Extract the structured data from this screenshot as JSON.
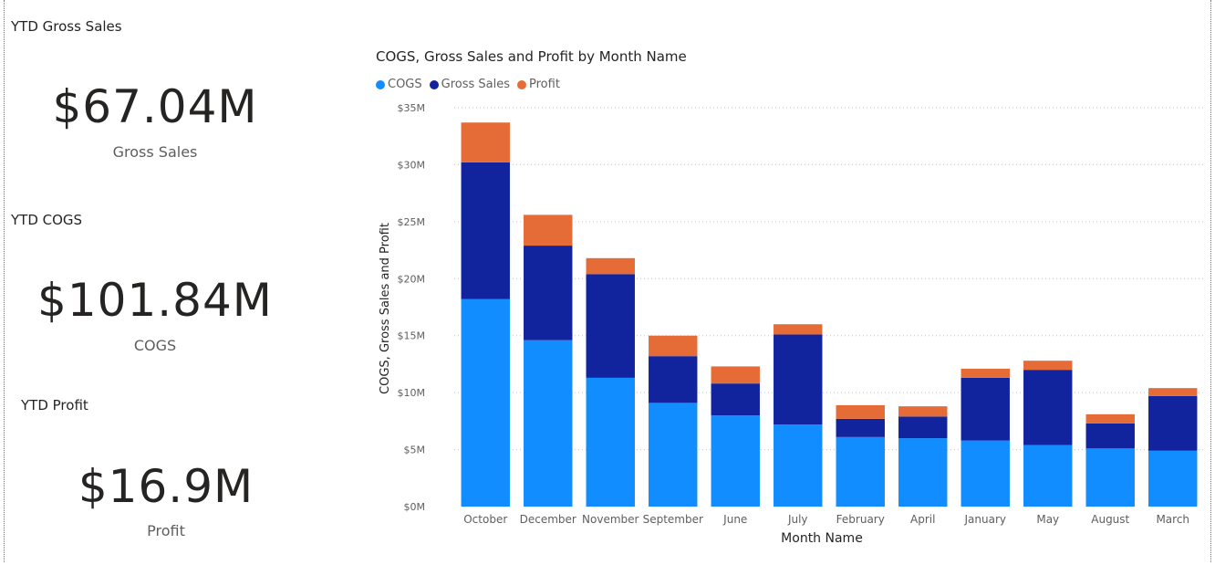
{
  "cards": [
    {
      "title": "YTD Gross Sales",
      "value": "$67.04M",
      "label": "Gross Sales"
    },
    {
      "title": "YTD COGS",
      "value": "$101.84M",
      "label": "COGS"
    },
    {
      "title": "YTD Profit",
      "value": "$16.9M",
      "label": "Profit"
    }
  ],
  "colors": {
    "cogs": "#118DFF",
    "gross_sales": "#12239E",
    "profit": "#E66C37"
  },
  "chart_data": {
    "type": "bar",
    "stacked": true,
    "title": "COGS, Gross Sales and Profit by Month Name",
    "xlabel": "Month Name",
    "ylabel": "COGS, Gross Sales and Profit",
    "ylim": [
      0,
      35000000
    ],
    "yticks": [
      "$0M",
      "$5M",
      "$10M",
      "$15M",
      "$20M",
      "$25M",
      "$30M",
      "$35M"
    ],
    "grid": true,
    "legend_position": "top-left",
    "categories": [
      "October",
      "December",
      "November",
      "September",
      "June",
      "July",
      "February",
      "April",
      "January",
      "May",
      "August",
      "March"
    ],
    "series": [
      {
        "name": "COGS",
        "values": [
          18200000,
          14600000,
          11300000,
          9100000,
          8000000,
          7200000,
          6100000,
          6000000,
          5800000,
          5400000,
          5100000,
          4900000
        ]
      },
      {
        "name": "Gross Sales",
        "values": [
          12000000,
          8300000,
          9100000,
          4100000,
          2800000,
          7900000,
          1600000,
          1900000,
          5500000,
          6600000,
          2200000,
          4800000
        ]
      },
      {
        "name": "Profit",
        "values": [
          3500000,
          2700000,
          1400000,
          1800000,
          1500000,
          900000,
          1200000,
          900000,
          800000,
          800000,
          800000,
          700000
        ]
      }
    ]
  }
}
